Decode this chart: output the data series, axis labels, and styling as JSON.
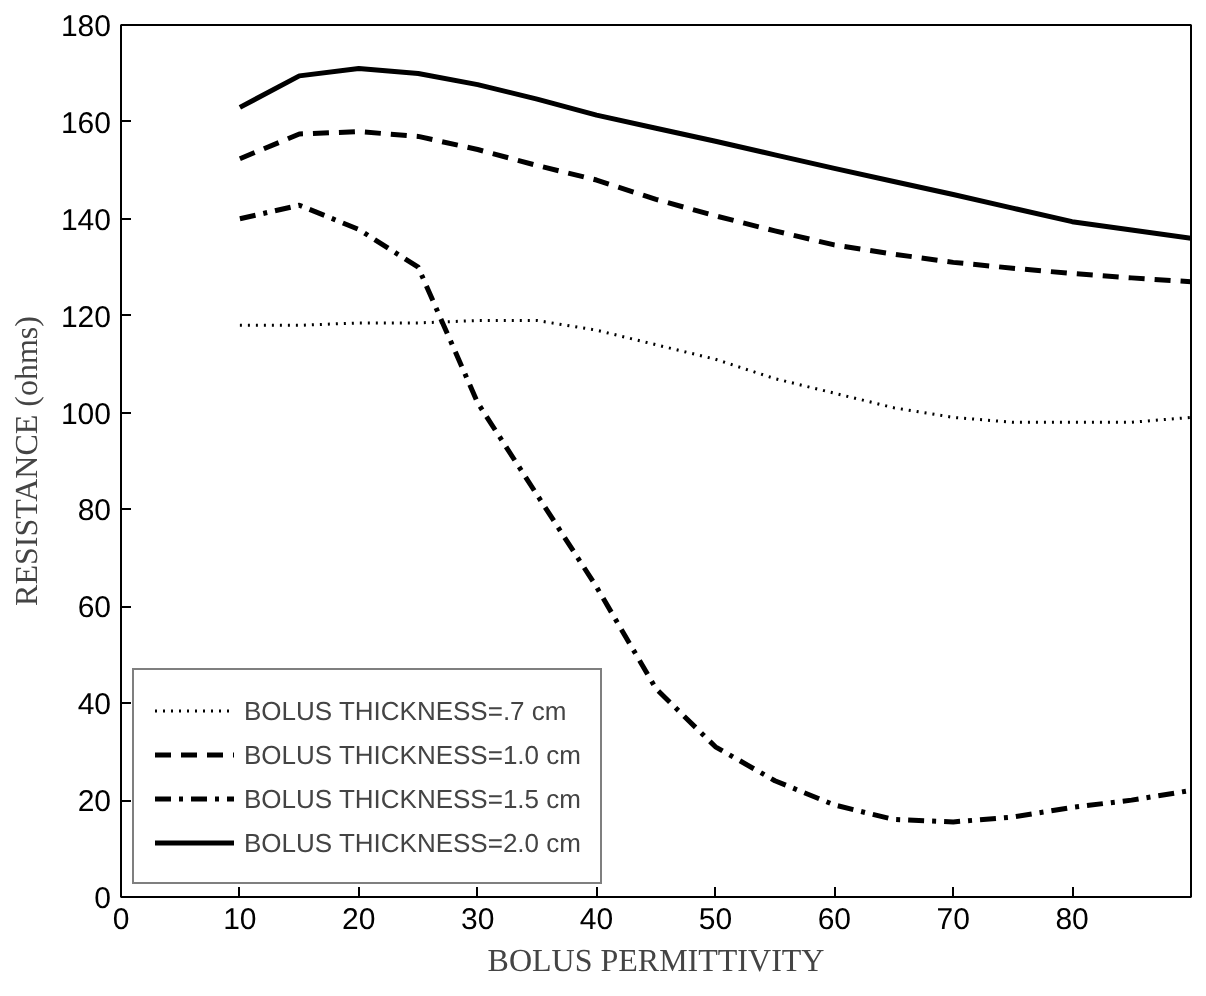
{
  "chart_data": {
    "type": "line",
    "xlabel": "BOLUS PERMITTIVITY",
    "ylabel": "RESISTANCE (ohms)",
    "xlim": [
      0,
      90
    ],
    "ylim": [
      0,
      180
    ],
    "xticks": [
      0,
      10,
      20,
      30,
      40,
      50,
      60,
      70,
      80
    ],
    "yticks": [
      0,
      20,
      40,
      60,
      80,
      100,
      120,
      140,
      160,
      180
    ],
    "grid": false,
    "legend": "bottom left",
    "marker": "none",
    "x": [
      10,
      15,
      20,
      25,
      30,
      35,
      40,
      45,
      50,
      55,
      60,
      65,
      70,
      75,
      80,
      85,
      90
    ],
    "series": [
      {
        "name": "BOLUS THICKNESS=.7 cm",
        "color": "#000000",
        "line_style": "dotted",
        "values": [
          118,
          118,
          118.5,
          118.5,
          119,
          119,
          117,
          114,
          111,
          107,
          104,
          101,
          99,
          98,
          98,
          98,
          99
        ]
      },
      {
        "name": "BOLUS THICKNESS=1.0 cm",
        "color": "#000000",
        "line_style": "dashed",
        "values": [
          152.4,
          157.5,
          158,
          157,
          154.3,
          151,
          148,
          144,
          140.6,
          137.5,
          134.6,
          132.7,
          131,
          129.8,
          128.7,
          127.8,
          127
        ]
      },
      {
        "name": "BOLUS THICKNESS=1.5 cm",
        "color": "#000000",
        "line_style": "dashdot",
        "values": [
          140,
          142.8,
          137.8,
          130,
          102,
          83,
          64,
          43,
          31,
          24,
          19,
          16,
          15.5,
          16.5,
          18.5,
          20,
          22
        ]
      },
      {
        "name": "BOLUS THICKNESS=2.0 cm",
        "color": "#000000",
        "line_style": "solid",
        "values": [
          163,
          169.5,
          171,
          170,
          167.7,
          164.7,
          161.4,
          158.7,
          156,
          153.2,
          150.4,
          147.7,
          145,
          142.2,
          139.4,
          137.7,
          136
        ]
      }
    ]
  }
}
